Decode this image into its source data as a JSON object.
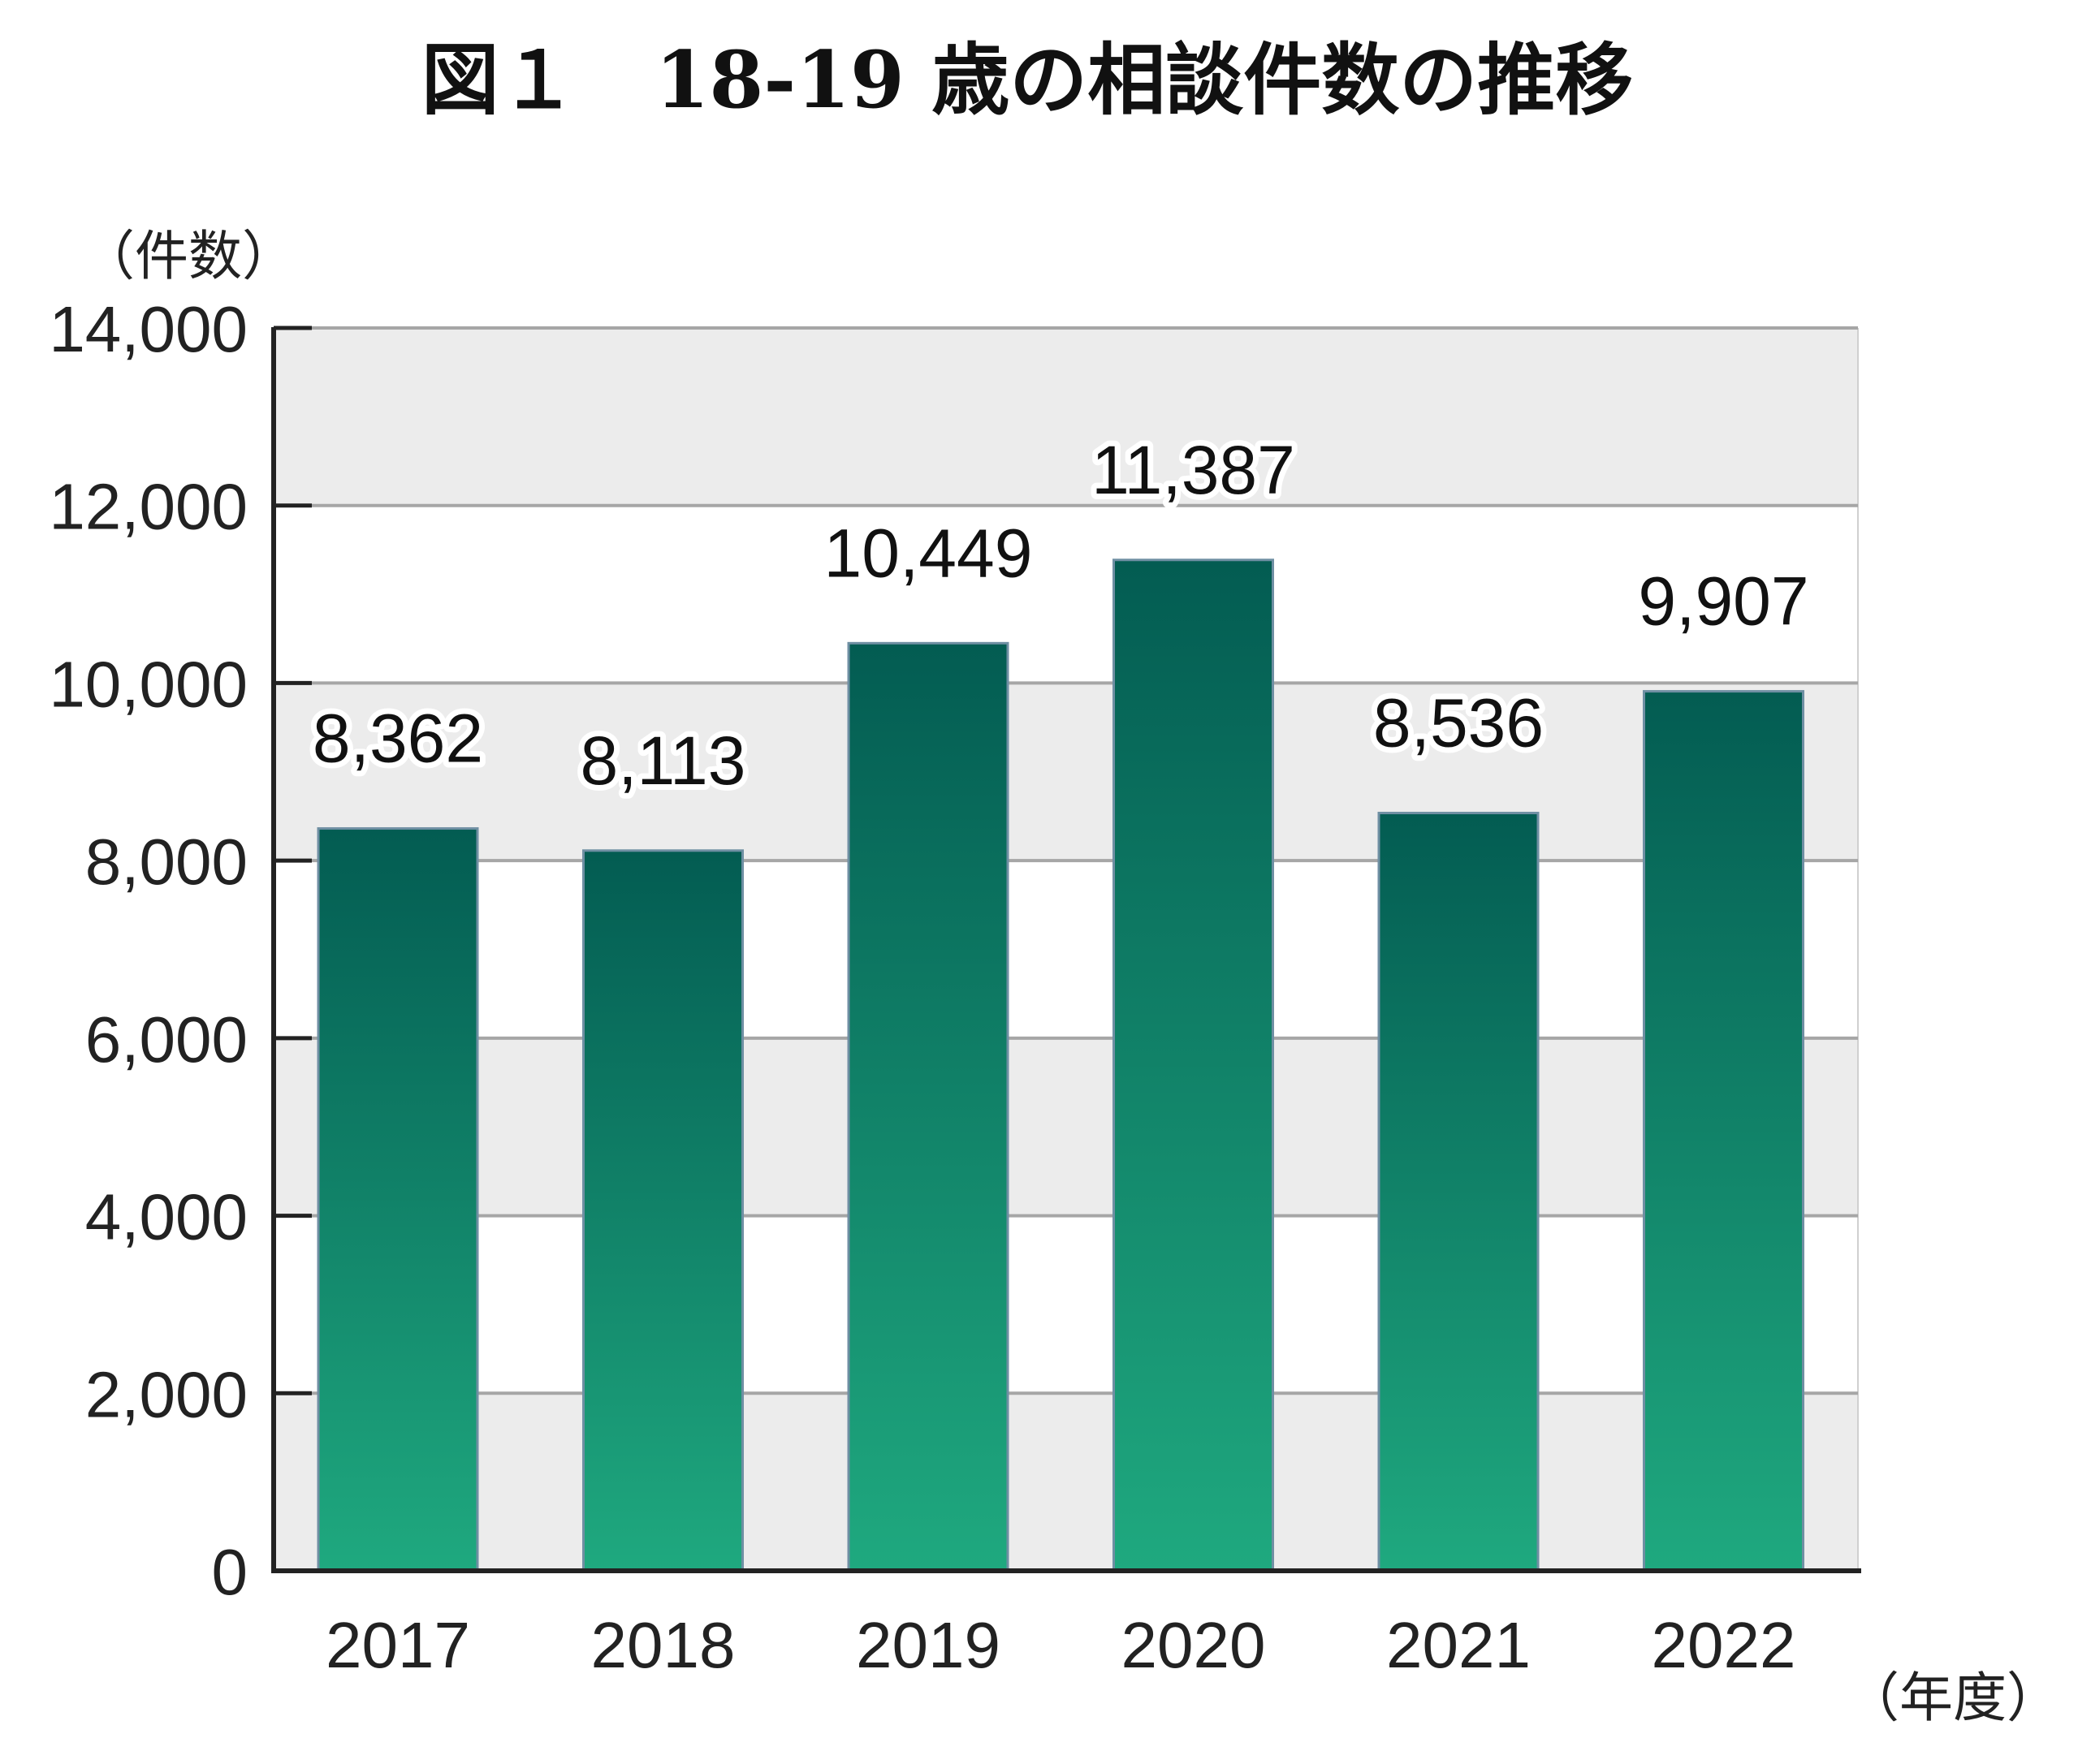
{
  "chart_data": {
    "type": "bar",
    "title": "図１　18-19 歳の相談件数の推移",
    "ylabel": "（件数）",
    "xlabel": "（年度）",
    "categories": [
      "2017",
      "2018",
      "2019",
      "2020",
      "2021",
      "2022"
    ],
    "values": [
      8362,
      8113,
      10449,
      11387,
      8536,
      9907
    ],
    "value_labels": [
      "8,362",
      "8,113",
      "10,449",
      "11,387",
      "8,536",
      "9,907"
    ],
    "ylim": [
      0,
      14000
    ],
    "yticks": [
      0,
      2000,
      4000,
      6000,
      8000,
      10000,
      12000,
      14000
    ],
    "ytick_labels": [
      "0",
      "2,000",
      "4,000",
      "6,000",
      "8,000",
      "10,000",
      "12,000",
      "14,000"
    ],
    "grid": true,
    "legend": "none",
    "colors": {
      "bar_top": "#035c52",
      "bar_bottom": "#1fa97f",
      "bar_edge": "#6f8fa3",
      "band_shaded": "#ececec",
      "band_white": "#ffffff",
      "grid": "#a6a6a6",
      "axis": "#222222"
    }
  }
}
